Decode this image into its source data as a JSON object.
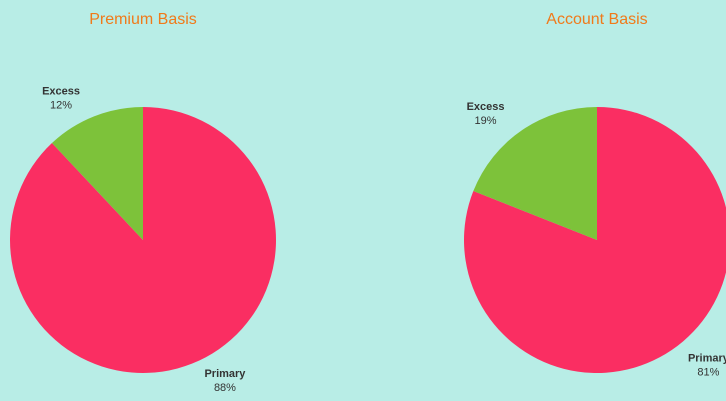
{
  "chart_data": [
    {
      "type": "pie",
      "title": "Premium Basis",
      "categories": [
        "Primary",
        "Excess"
      ],
      "values": [
        88,
        12
      ],
      "value_labels": [
        "88%",
        "12%"
      ],
      "colors": [
        "#fa2e62",
        "#7dc23a"
      ]
    },
    {
      "type": "pie",
      "title": "Account Basis",
      "categories": [
        "Primary",
        "Excess"
      ],
      "values": [
        81,
        19
      ],
      "value_labels": [
        "81%",
        "19%"
      ],
      "colors": [
        "#fa2e62",
        "#7dc23a"
      ]
    }
  ]
}
